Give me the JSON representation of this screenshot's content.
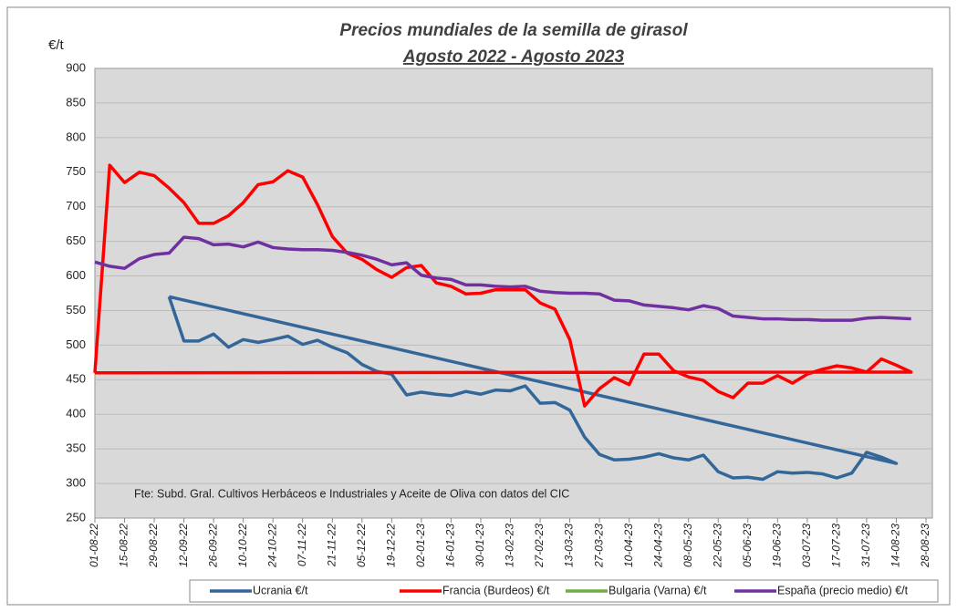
{
  "chart_data": {
    "type": "line",
    "title": "Precios mundiales de la semilla de girasol",
    "subtitle": "Agosto 2022 -  Agosto 2023",
    "y_label": "€/t",
    "annotation": "Fte: Subd. Gral. Cultivos Herbáceos e Industriales y Aceite de Oliva con datos del CIC",
    "x": [
      "01-08-22",
      null,
      "15-08-22",
      null,
      "29-08-22",
      null,
      "12-09-22",
      null,
      "26-09-22",
      null,
      "10-10-22",
      null,
      "24-10-22",
      null,
      "07-11-22",
      null,
      "21-11-22",
      null,
      "05-12-22",
      null,
      "19-12-22",
      null,
      "02-01-23",
      null,
      "16-01-23",
      null,
      "30-01-23",
      null,
      "13-02-23",
      null,
      "27-02-23",
      null,
      "13-03-23",
      null,
      "27-03-23",
      null,
      "10-04-23",
      null,
      "24-04-23",
      null,
      "08-05-23",
      null,
      "22-05-23",
      null,
      "05-06-23",
      null,
      "19-06-23",
      null,
      "03-07-23",
      null,
      "17-07-23",
      null,
      "31-07-23",
      null,
      "14-08-23",
      null,
      "28-08-23"
    ],
    "series": [
      {
        "name": "Ucrania €/t",
        "color": "#336699",
        "closed": true,
        "values": [
          null,
          null,
          null,
          null,
          null,
          570,
          506,
          506,
          516,
          497,
          508,
          504,
          508,
          513,
          501,
          507,
          497,
          489,
          472,
          462,
          458,
          428,
          432,
          429,
          427,
          433,
          429,
          435,
          434,
          441,
          416,
          417,
          406,
          367,
          342,
          334,
          335,
          338,
          343,
          337,
          334,
          341,
          317,
          308,
          309,
          306,
          317,
          315,
          316,
          314,
          308,
          315,
          345,
          338,
          329,
          null,
          null
        ]
      },
      {
        "name": "Francia (Burdeos) €/t",
        "color": "#ff0000",
        "closed": true,
        "values": [
          460,
          760,
          735,
          750,
          745,
          727,
          706,
          676,
          676,
          687,
          706,
          732,
          736,
          752,
          743,
          703,
          657,
          633,
          624,
          609,
          598,
          612,
          615,
          590,
          585,
          574,
          575,
          580,
          580,
          580,
          561,
          552,
          508,
          412,
          437,
          453,
          443,
          487,
          487,
          463,
          454,
          449,
          433,
          424,
          445,
          445,
          456,
          445,
          458,
          465,
          470,
          467,
          461,
          480,
          471,
          461,
          null
        ]
      },
      {
        "name": "Bulgaria (Varna) €/t",
        "color": "#70ad47",
        "values": [
          null,
          null,
          null,
          null,
          null,
          null,
          null,
          null,
          null,
          null,
          null,
          null,
          null,
          null,
          null,
          null,
          null,
          null,
          null,
          null,
          null,
          null,
          null,
          null,
          null,
          null,
          null,
          null,
          null,
          null,
          null,
          null,
          null,
          null,
          null,
          null,
          null,
          null,
          null,
          null,
          null,
          null,
          null,
          null,
          null,
          null,
          null,
          null,
          null,
          null,
          null,
          null,
          null,
          null,
          null,
          null,
          null
        ]
      },
      {
        "name": "España (precio medio) €/t",
        "color": "#7030a0",
        "values": [
          620,
          614,
          611,
          625,
          631,
          633,
          656,
          654,
          645,
          646,
          642,
          649,
          641,
          639,
          638,
          638,
          637,
          634,
          630,
          624,
          616,
          619,
          601,
          597,
          595,
          587,
          587,
          585,
          584,
          585,
          578,
          576,
          575,
          575,
          574,
          565,
          564,
          558,
          556,
          554,
          551,
          557,
          553,
          542,
          540,
          538,
          538,
          537,
          537,
          536,
          536,
          536,
          539,
          540,
          539,
          538,
          null
        ]
      }
    ],
    "ylim": [
      250,
      900
    ],
    "yticks": [
      250,
      300,
      350,
      400,
      450,
      500,
      550,
      600,
      650,
      700,
      750,
      800,
      850,
      900
    ],
    "grid": true
  }
}
